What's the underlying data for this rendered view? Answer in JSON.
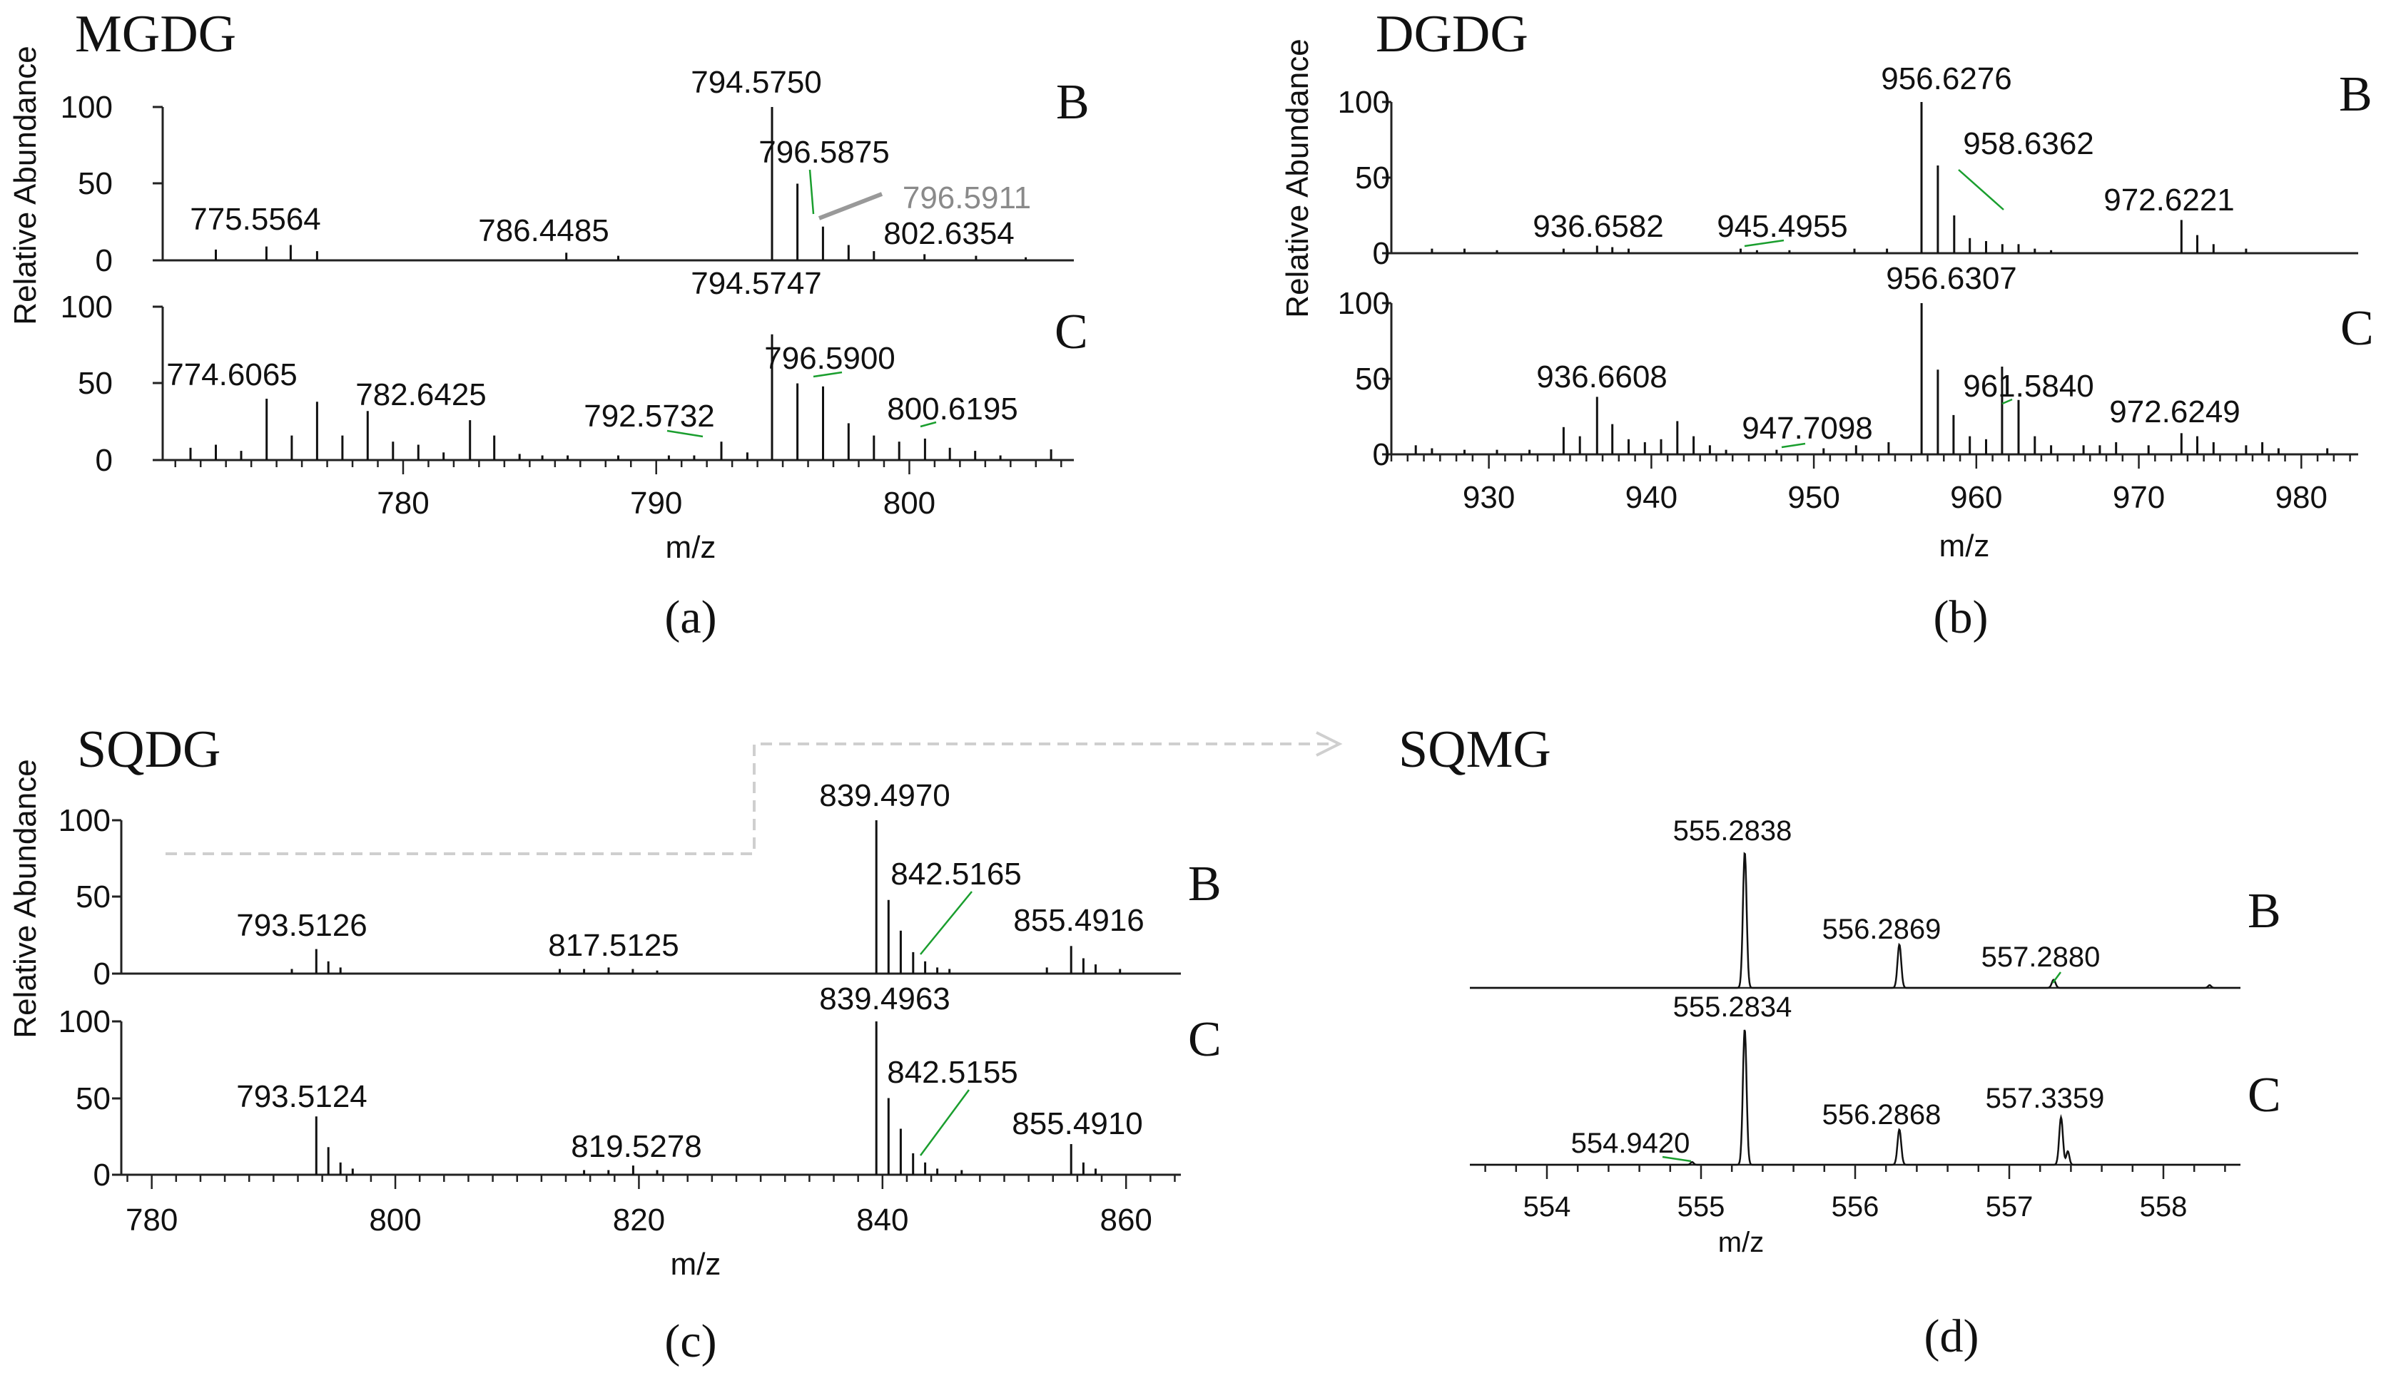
{
  "figure": {
    "ylabel": "Relative Abundance",
    "xlabel": "m/z"
  },
  "chart_data": [
    {
      "type": "bar",
      "panel_label": "(a)",
      "title": "MGDG",
      "xlabel": "m/z",
      "ylabel": "Relative Abundance",
      "xlim": [
        770.5,
        806.5
      ],
      "ylim": [
        0,
        100
      ],
      "xticks": [
        780,
        790,
        800
      ],
      "yticks": [
        0,
        50,
        100
      ],
      "traces": [
        {
          "name": "B",
          "peaks": [
            [
              772.6,
              7
            ],
            [
              774.6,
              9
            ],
            [
              775.5564,
              10
            ],
            [
              776.6,
              6
            ],
            [
              786.4485,
              5
            ],
            [
              788.5,
              3
            ],
            [
              794.575,
              100
            ],
            [
              795.58,
              50
            ],
            [
              796.5875,
              22
            ],
            [
              797.6,
              10
            ],
            [
              798.6,
              6
            ],
            [
              800.6,
              4
            ],
            [
              802.6354,
              3
            ],
            [
              804.6,
              2
            ]
          ],
          "labels": [
            {
              "text": "775.5564",
              "x": 775.5564
            },
            {
              "text": "786.4485",
              "x": 786.4485
            },
            {
              "text": "794.5750",
              "x": 794.575
            },
            {
              "text": "796.5875",
              "x": 796.5875
            },
            {
              "text": "802.6354",
              "x": 802.6354
            }
          ]
        },
        {
          "name": "C",
          "peaks": [
            [
              771.6,
              8
            ],
            [
              772.6,
              10
            ],
            [
              773.6,
              6
            ],
            [
              774.6065,
              40
            ],
            [
              775.6,
              16
            ],
            [
              776.6,
              38
            ],
            [
              777.6,
              16
            ],
            [
              778.6,
              32
            ],
            [
              779.6,
              12
            ],
            [
              780.6,
              10
            ],
            [
              781.6,
              5
            ],
            [
              782.6425,
              26
            ],
            [
              783.6,
              16
            ],
            [
              784.6,
              4
            ],
            [
              785.5,
              3
            ],
            [
              786.5,
              3
            ],
            [
              788.5,
              3
            ],
            [
              790.5,
              3
            ],
            [
              791.5,
              3
            ],
            [
              792.5732,
              12
            ],
            [
              793.6,
              5
            ],
            [
              794.5747,
              82
            ],
            [
              795.58,
              50
            ],
            [
              796.59,
              48
            ],
            [
              797.6,
              24
            ],
            [
              798.6,
              16
            ],
            [
              799.6,
              12
            ],
            [
              800.6195,
              14
            ],
            [
              801.6,
              8
            ],
            [
              802.6,
              6
            ],
            [
              803.6,
              3
            ],
            [
              805.6,
              7
            ]
          ],
          "labels": [
            {
              "text": "774.6065",
              "x": 774.6065
            },
            {
              "text": "782.6425",
              "x": 782.6425
            },
            {
              "text": "792.5732",
              "x": 792.5732
            },
            {
              "text": "794.5747",
              "x": 794.5747
            },
            {
              "text": "796.5900",
              "x": 796.59
            },
            {
              "text": "800.6195",
              "x": 800.6195
            }
          ]
        }
      ],
      "annotations": [
        {
          "text": "796.5911",
          "x": 796.5911,
          "color": "#888888"
        }
      ]
    },
    {
      "type": "bar",
      "panel_label": "(b)",
      "title": "DGDG",
      "xlabel": "m/z",
      "ylabel": "Relative Abundance",
      "xlim": [
        924,
        983.5
      ],
      "ylim": [
        0,
        100
      ],
      "xticks": [
        930,
        940,
        950,
        960,
        970,
        980
      ],
      "yticks": [
        0,
        50,
        100
      ],
      "traces": [
        {
          "name": "B",
          "peaks": [
            [
              926.5,
              3
            ],
            [
              928.5,
              3
            ],
            [
              930.5,
              2
            ],
            [
              934.6,
              3
            ],
            [
              936.6582,
              5
            ],
            [
              937.6,
              4
            ],
            [
              938.6,
              3
            ],
            [
              945.4955,
              3
            ],
            [
              946.5,
              2
            ],
            [
              948.5,
              2
            ],
            [
              952.5,
              3
            ],
            [
              954.5,
              3
            ],
            [
              956.6276,
              100
            ],
            [
              957.63,
              58
            ],
            [
              958.6362,
              25
            ],
            [
              959.6,
              10
            ],
            [
              960.6,
              8
            ],
            [
              961.6,
              6
            ],
            [
              962.6,
              6
            ],
            [
              963.6,
              3
            ],
            [
              964.6,
              2
            ],
            [
              972.6221,
              22
            ],
            [
              973.6,
              12
            ],
            [
              974.6,
              6
            ],
            [
              976.6,
              3
            ]
          ],
          "labels": [
            {
              "text": "936.6582",
              "x": 936.6582
            },
            {
              "text": "945.4955",
              "x": 945.4955
            },
            {
              "text": "956.6276",
              "x": 956.6276
            },
            {
              "text": "958.6362",
              "x": 958.6362
            },
            {
              "text": "972.6221",
              "x": 972.6221
            }
          ]
        },
        {
          "name": "C",
          "peaks": [
            [
              925.5,
              6
            ],
            [
              926.5,
              4
            ],
            [
              928.5,
              3
            ],
            [
              930.5,
              3
            ],
            [
              932.5,
              3
            ],
            [
              934.6,
              18
            ],
            [
              935.6,
              12
            ],
            [
              936.6608,
              38
            ],
            [
              937.6,
              20
            ],
            [
              938.6,
              10
            ],
            [
              939.6,
              8
            ],
            [
              940.6,
              10
            ],
            [
              941.6,
              22
            ],
            [
              942.6,
              12
            ],
            [
              943.6,
              6
            ],
            [
              944.6,
              3
            ],
            [
              947.7098,
              3
            ],
            [
              950.6,
              4
            ],
            [
              952.6,
              6
            ],
            [
              954.6,
              8
            ],
            [
              956.6307,
              100
            ],
            [
              957.63,
              56
            ],
            [
              958.6,
              26
            ],
            [
              959.6,
              12
            ],
            [
              960.6,
              10
            ],
            [
              961.584,
              58
            ],
            [
              962.6,
              36
            ],
            [
              963.6,
              12
            ],
            [
              964.6,
              6
            ],
            [
              966.6,
              6
            ],
            [
              967.6,
              6
            ],
            [
              968.6,
              8
            ],
            [
              970.6,
              6
            ],
            [
              972.6249,
              14
            ],
            [
              973.6,
              12
            ],
            [
              974.6,
              8
            ],
            [
              976.6,
              6
            ],
            [
              977.6,
              8
            ],
            [
              978.6,
              4
            ],
            [
              981.6,
              4
            ]
          ],
          "labels": [
            {
              "text": "936.6608",
              "x": 936.6608
            },
            {
              "text": "947.7098",
              "x": 947.7098
            },
            {
              "text": "956.6307",
              "x": 956.6307
            },
            {
              "text": "961.5840",
              "x": 961.584
            },
            {
              "text": "972.6249",
              "x": 972.6249
            }
          ]
        }
      ]
    },
    {
      "type": "bar",
      "panel_label": "(c)",
      "title": "SQDG",
      "xlabel": "m/z",
      "ylabel": "Relative Abundance",
      "xlim": [
        777.5,
        864.5
      ],
      "ylim": [
        0,
        100
      ],
      "xticks": [
        780,
        800,
        820,
        840,
        860
      ],
      "yticks": [
        0,
        50,
        100
      ],
      "traces": [
        {
          "name": "B",
          "peaks": [
            [
              791.5,
              3
            ],
            [
              793.5126,
              16
            ],
            [
              794.5,
              8
            ],
            [
              795.5,
              4
            ],
            [
              813.5,
              3
            ],
            [
              815.5,
              3
            ],
            [
              817.5125,
              4
            ],
            [
              819.5,
              3
            ],
            [
              821.5,
              2
            ],
            [
              839.497,
              100
            ],
            [
              840.5,
              48
            ],
            [
              841.5,
              28
            ],
            [
              842.5165,
              14
            ],
            [
              843.5,
              8
            ],
            [
              844.5,
              4
            ],
            [
              845.5,
              3
            ],
            [
              853.5,
              4
            ],
            [
              855.4916,
              18
            ],
            [
              856.5,
              10
            ],
            [
              857.5,
              6
            ],
            [
              859.5,
              3
            ]
          ],
          "labels": [
            {
              "text": "793.5126",
              "x": 793.5126
            },
            {
              "text": "817.5125",
              "x": 817.5125
            },
            {
              "text": "839.4970",
              "x": 839.497
            },
            {
              "text": "842.5165",
              "x": 842.5165
            },
            {
              "text": "855.4916",
              "x": 855.4916
            }
          ]
        },
        {
          "name": "C",
          "peaks": [
            [
              793.5124,
              38
            ],
            [
              794.5,
              18
            ],
            [
              795.5,
              8
            ],
            [
              796.5,
              4
            ],
            [
              815.5,
              3
            ],
            [
              817.5,
              3
            ],
            [
              819.5278,
              6
            ],
            [
              821.5,
              3
            ],
            [
              839.4963,
              100
            ],
            [
              840.5,
              50
            ],
            [
              841.5,
              30
            ],
            [
              842.5155,
              14
            ],
            [
              843.5,
              8
            ],
            [
              844.5,
              4
            ],
            [
              846.5,
              3
            ],
            [
              855.491,
              20
            ],
            [
              856.5,
              8
            ],
            [
              857.5,
              4
            ]
          ],
          "labels": [
            {
              "text": "793.5124",
              "x": 793.5124
            },
            {
              "text": "819.5278",
              "x": 819.5278
            },
            {
              "text": "839.4963",
              "x": 839.4963
            },
            {
              "text": "842.5155",
              "x": 842.5155
            },
            {
              "text": "855.4910",
              "x": 855.491
            }
          ]
        }
      ]
    },
    {
      "type": "line",
      "panel_label": "(d)",
      "title": "SQMG",
      "xlabel": "m/z",
      "ylabel": "",
      "xlim": [
        553.5,
        558.5
      ],
      "ylim": [
        0,
        100
      ],
      "xticks": [
        554,
        555,
        556,
        557,
        558
      ],
      "traces": [
        {
          "name": "B",
          "peaks": [
            [
              555.2838,
              100,
              0.012
            ],
            [
              556.2869,
              32,
              0.012
            ],
            [
              557.288,
              6,
              0.012
            ],
            [
              558.3,
              2,
              0.01
            ]
          ],
          "labels": [
            {
              "text": "555.2838",
              "x": 555.2838
            },
            {
              "text": "556.2869",
              "x": 556.2869
            },
            {
              "text": "557.2880",
              "x": 557.288
            }
          ]
        },
        {
          "name": "C",
          "peaks": [
            [
              554.942,
              2,
              0.01
            ],
            [
              555.2834,
              100,
              0.012
            ],
            [
              556.2868,
              26,
              0.012
            ],
            [
              557.3359,
              35,
              0.012
            ],
            [
              557.38,
              10,
              0.01
            ]
          ],
          "labels": [
            {
              "text": "554.9420",
              "x": 554.942
            },
            {
              "text": "555.2834",
              "x": 555.2834
            },
            {
              "text": "556.2868",
              "x": 556.2868
            },
            {
              "text": "557.3359",
              "x": 557.3359
            }
          ]
        }
      ]
    }
  ]
}
